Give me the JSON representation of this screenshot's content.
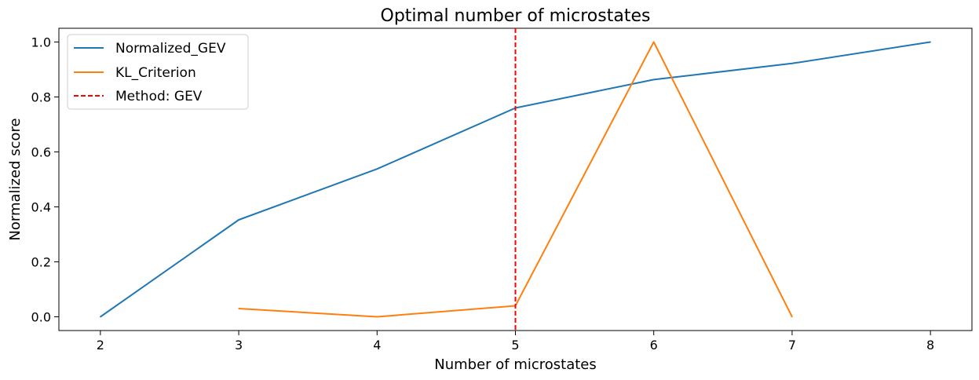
{
  "chart_data": {
    "type": "line",
    "title": "Optimal number of microstates",
    "xlabel": "Number of microstates",
    "ylabel": "Normalized score",
    "xlim": [
      1.7,
      8.3
    ],
    "ylim": [
      -0.05,
      1.05
    ],
    "x_ticks": [
      "2",
      "3",
      "4",
      "5",
      "6",
      "7",
      "8"
    ],
    "y_ticks": [
      "0.0",
      "0.2",
      "0.4",
      "0.6",
      "0.8",
      "1.0"
    ],
    "grid": false,
    "legend_position": "top-left",
    "series": [
      {
        "name": "Normalized_GEV",
        "color": "#1f77b4",
        "x": [
          2,
          3,
          4,
          5,
          6,
          7,
          8
        ],
        "y": [
          0.0,
          0.353,
          0.538,
          0.76,
          0.863,
          0.922,
          1.0
        ]
      },
      {
        "name": "KL_Criterion",
        "color": "#ff7f0e",
        "x": [
          3,
          4,
          5,
          6,
          7
        ],
        "y": [
          0.03,
          0.0,
          0.04,
          1.0,
          0.0
        ]
      }
    ],
    "vline": {
      "label": "Method: GEV",
      "x": 5,
      "color": "#ff0000",
      "style": "dashed"
    }
  }
}
